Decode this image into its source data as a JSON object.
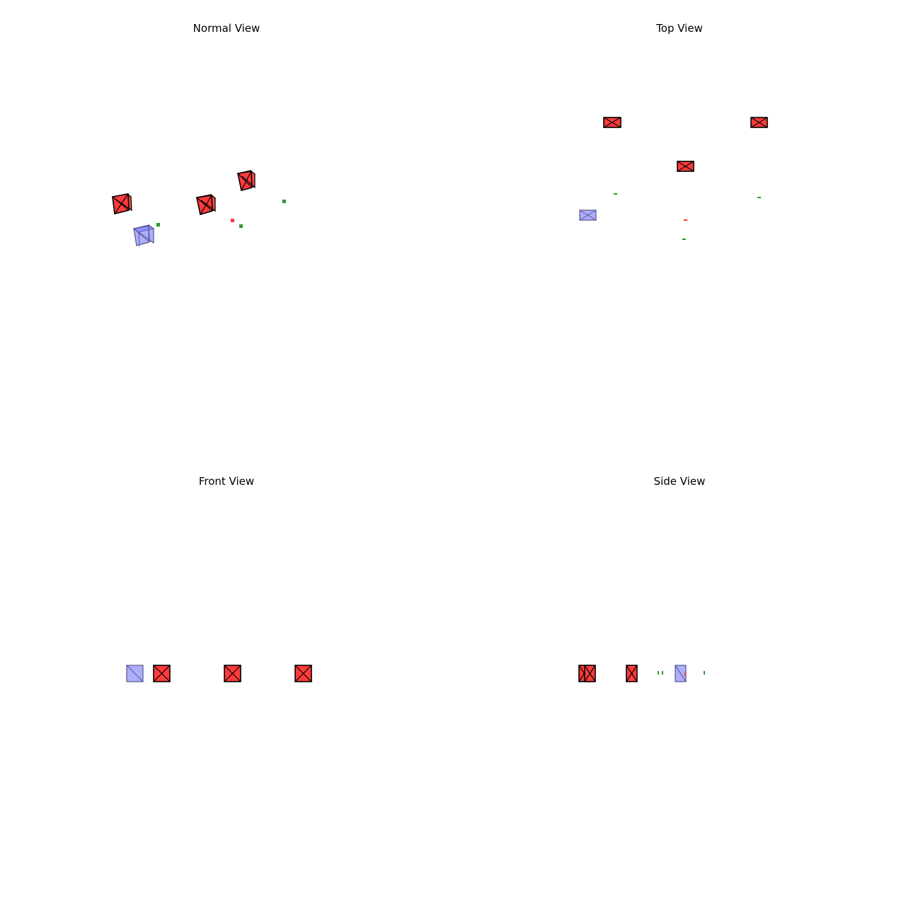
{
  "panels": {
    "normal": {
      "title": "Normal View"
    },
    "top": {
      "title": "Top View"
    },
    "front": {
      "title": "Front View"
    },
    "side": {
      "title": "Side View"
    }
  },
  "colors": {
    "obstacle": "#ff3b3b",
    "target": "#8080ff",
    "marker_green": "#2e9a2e",
    "marker_red": "#ff3b3b",
    "edge": "#000000"
  }
}
